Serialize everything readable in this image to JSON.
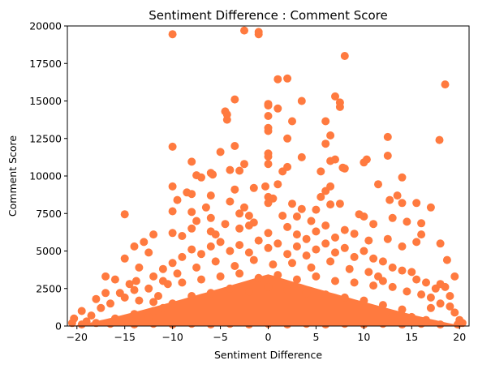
{
  "chart_data": {
    "type": "scatter",
    "title": "Sentiment Difference : Comment Score",
    "xlabel": "Sentiment Difference",
    "ylabel": "Comment Score",
    "xlim": [
      -21,
      21
    ],
    "ylim": [
      0,
      20000
    ],
    "x_ticks": [
      -20,
      -15,
      -10,
      -5,
      0,
      5,
      10,
      15,
      20
    ],
    "x_tick_labels": [
      "−20",
      "−15",
      "−10",
      "−5",
      "0",
      "5",
      "10",
      "15",
      "20"
    ],
    "y_ticks": [
      0,
      2500,
      5000,
      7500,
      10000,
      12500,
      15000,
      17500,
      20000
    ],
    "y_tick_labels": [
      "0",
      "2500",
      "5000",
      "7500",
      "10000",
      "12500",
      "15000",
      "17500",
      "20000"
    ],
    "grid": false,
    "legend": "none",
    "marker_color": "#ff7a3f",
    "series": [
      {
        "points": [
          [
            -10,
            19450
          ],
          [
            -2.5,
            19700
          ],
          [
            -1,
            19600
          ],
          [
            -1,
            19450
          ],
          [
            8,
            18000
          ],
          [
            18.5,
            16100
          ],
          [
            1,
            16450
          ],
          [
            2,
            16500
          ],
          [
            -3.5,
            15100
          ],
          [
            3.5,
            15000
          ],
          [
            7,
            15300
          ],
          [
            7.5,
            14900
          ],
          [
            7.5,
            14600
          ],
          [
            -4.5,
            14300
          ],
          [
            -4.3,
            14100
          ],
          [
            -4.3,
            13750
          ],
          [
            0,
            14800
          ],
          [
            0,
            14700
          ],
          [
            1,
            14500
          ],
          [
            0,
            14000
          ],
          [
            2.5,
            13650
          ],
          [
            0,
            13200
          ],
          [
            0,
            13000
          ],
          [
            6,
            13650
          ],
          [
            6.5,
            12700
          ],
          [
            12.5,
            12600
          ],
          [
            2,
            12500
          ],
          [
            6,
            12150
          ],
          [
            17.9,
            12400
          ],
          [
            -10,
            11950
          ],
          [
            -3.5,
            12000
          ],
          [
            -5,
            11600
          ],
          [
            0,
            11500
          ],
          [
            0,
            11300
          ],
          [
            12.5,
            11350
          ],
          [
            3.5,
            11250
          ],
          [
            -8,
            10950
          ],
          [
            -2.5,
            10800
          ],
          [
            0,
            10800
          ],
          [
            5.5,
            10300
          ],
          [
            6.5,
            11000
          ],
          [
            7,
            11100
          ],
          [
            8,
            10500
          ],
          [
            7.8,
            10550
          ],
          [
            10,
            10900
          ],
          [
            10.3,
            11100
          ],
          [
            -4,
            10400
          ],
          [
            -3,
            10350
          ],
          [
            -6,
            10200
          ],
          [
            -5.8,
            10100
          ],
          [
            -7.5,
            10050
          ],
          [
            -7,
            9900
          ],
          [
            1.5,
            10300
          ],
          [
            2,
            10600
          ],
          [
            14,
            9900
          ],
          [
            -10,
            9300
          ],
          [
            -9.5,
            8400
          ],
          [
            -8.5,
            8900
          ],
          [
            -8,
            8800
          ],
          [
            -3.5,
            9100
          ],
          [
            -1.5,
            9200
          ],
          [
            -0.3,
            9300
          ],
          [
            1,
            9450
          ],
          [
            5.5,
            8600
          ],
          [
            6,
            9000
          ],
          [
            6.5,
            9300
          ],
          [
            11.5,
            9450
          ],
          [
            -6,
            8700
          ],
          [
            -4,
            8300
          ],
          [
            -2.5,
            7900
          ],
          [
            0,
            8600
          ],
          [
            0,
            8200
          ],
          [
            0.5,
            8500
          ],
          [
            2.5,
            8150
          ],
          [
            3.5,
            7800
          ],
          [
            5,
            7750
          ],
          [
            6.5,
            8100
          ],
          [
            7.5,
            8150
          ],
          [
            12.7,
            8400
          ],
          [
            13.5,
            8700
          ],
          [
            14,
            8200
          ],
          [
            15.5,
            8200
          ],
          [
            17,
            7900
          ],
          [
            -15,
            7450
          ],
          [
            -10,
            7650
          ],
          [
            -8,
            7600
          ],
          [
            -7.5,
            7000
          ],
          [
            -6.5,
            7900
          ],
          [
            -6,
            7200
          ],
          [
            -3,
            7500
          ],
          [
            -2,
            7350
          ],
          [
            -1.5,
            6900
          ],
          [
            1.5,
            7350
          ],
          [
            3,
            7300
          ],
          [
            4.5,
            7000
          ],
          [
            9.5,
            7450
          ],
          [
            10,
            7300
          ],
          [
            11,
            6800
          ],
          [
            13,
            7200
          ],
          [
            14.5,
            6950
          ],
          [
            16,
            6850
          ],
          [
            -14,
            5300
          ],
          [
            -13,
            5600
          ],
          [
            -12,
            6100
          ],
          [
            -12.5,
            4900
          ],
          [
            -15,
            4500
          ],
          [
            -10,
            6200
          ],
          [
            -9,
            6000
          ],
          [
            -8,
            6500
          ],
          [
            -6,
            6300
          ],
          [
            -5.5,
            6100
          ],
          [
            -4.5,
            6800
          ],
          [
            -3,
            6500
          ],
          [
            -2,
            6700
          ],
          [
            0,
            6200
          ],
          [
            2,
            6600
          ],
          [
            3,
            6100
          ],
          [
            4,
            5800
          ],
          [
            5,
            6300
          ],
          [
            6,
            6700
          ],
          [
            7,
            5900
          ],
          [
            8,
            6400
          ],
          [
            9,
            6150
          ],
          [
            10.5,
            5700
          ],
          [
            12.5,
            5800
          ],
          [
            14,
            5300
          ],
          [
            15.5,
            5600
          ],
          [
            16,
            6100
          ],
          [
            18,
            5500
          ],
          [
            18.7,
            4400
          ],
          [
            -17,
            3300
          ],
          [
            -16,
            3100
          ],
          [
            -14.5,
            2800
          ],
          [
            -13.5,
            3900
          ],
          [
            -13.8,
            3000
          ],
          [
            -12,
            3300
          ],
          [
            -11,
            3000
          ],
          [
            -18,
            1800
          ],
          [
            -19.5,
            1000
          ],
          [
            -17,
            2200
          ],
          [
            -15.5,
            2200
          ],
          [
            -14,
            2400
          ],
          [
            -12.5,
            2500
          ],
          [
            -11.5,
            2000
          ],
          [
            -20.5,
            200
          ],
          [
            -20.3,
            500
          ],
          [
            -19,
            300
          ],
          [
            -18.5,
            700
          ],
          [
            -17.5,
            1200
          ],
          [
            -16.5,
            1500
          ],
          [
            -15,
            1900
          ],
          [
            -13.5,
            1700
          ],
          [
            -12,
            1600
          ],
          [
            13,
            3900
          ],
          [
            14,
            3700
          ],
          [
            15,
            3600
          ],
          [
            15.5,
            3100
          ],
          [
            16.5,
            2900
          ],
          [
            17.5,
            2500
          ],
          [
            18,
            2800
          ],
          [
            18.5,
            2600
          ],
          [
            19.5,
            3300
          ],
          [
            19,
            2000
          ],
          [
            17,
            1900
          ],
          [
            16,
            2100
          ],
          [
            14.5,
            2300
          ],
          [
            13,
            2600
          ],
          [
            12,
            3000
          ],
          [
            19.5,
            900
          ],
          [
            20,
            400
          ],
          [
            20.3,
            200
          ],
          [
            19,
            1300
          ],
          [
            18,
            1500
          ],
          [
            17,
            1200
          ],
          [
            -10,
            4200
          ],
          [
            -9,
            4600
          ],
          [
            -8,
            5100
          ],
          [
            -7,
            4800
          ],
          [
            -6,
            5300
          ],
          [
            -5,
            5600
          ],
          [
            -4,
            5000
          ],
          [
            -3,
            5400
          ],
          [
            -2,
            4900
          ],
          [
            -1,
            5700
          ],
          [
            0,
            5200
          ],
          [
            1,
            5500
          ],
          [
            2,
            4800
          ],
          [
            3,
            5300
          ],
          [
            4,
            4700
          ],
          [
            5,
            5100
          ],
          [
            6,
            5500
          ],
          [
            7,
            4900
          ],
          [
            8,
            5200
          ],
          [
            9,
            4600
          ],
          [
            10,
            5000
          ],
          [
            11,
            4500
          ],
          [
            12,
            4300
          ],
          [
            -11,
            3800
          ],
          [
            -9.5,
            3500
          ],
          [
            -7.5,
            3900
          ],
          [
            -5.5,
            4300
          ],
          [
            -3.5,
            4000
          ],
          [
            -1.5,
            4400
          ],
          [
            0.5,
            4100
          ],
          [
            2.5,
            4200
          ],
          [
            4.5,
            3900
          ],
          [
            6.5,
            4300
          ],
          [
            8.5,
            3800
          ],
          [
            10.5,
            3600
          ],
          [
            11.5,
            3300
          ],
          [
            -10.5,
            2800
          ],
          [
            -9,
            2900
          ],
          [
            -7,
            3100
          ],
          [
            -5,
            3300
          ],
          [
            -3,
            3500
          ],
          [
            -1,
            3200
          ],
          [
            1,
            3400
          ],
          [
            3,
            3100
          ],
          [
            5,
            3300
          ],
          [
            7,
            3000
          ],
          [
            9,
            2900
          ],
          [
            11,
            2700
          ],
          [
            -12,
            1000
          ],
          [
            -11,
            1200
          ],
          [
            -10,
            1500
          ],
          [
            -8,
            2000
          ],
          [
            -6,
            2200
          ],
          [
            -4,
            2500
          ],
          [
            -2,
            2300
          ],
          [
            0,
            2600
          ],
          [
            2,
            2400
          ],
          [
            4,
            2200
          ],
          [
            6,
            2100
          ],
          [
            8,
            1900
          ],
          [
            10,
            1700
          ],
          [
            12,
            1400
          ],
          [
            14,
            1100
          ],
          [
            -16,
            500
          ],
          [
            -14,
            800
          ],
          [
            -12.5,
            600
          ],
          [
            13,
            700
          ],
          [
            15,
            600
          ],
          [
            16.5,
            400
          ],
          [
            -19.5,
            100
          ],
          [
            -18,
            200
          ],
          [
            -16.5,
            150
          ],
          [
            -14,
            100
          ],
          [
            -12,
            150
          ],
          [
            -10,
            100
          ],
          [
            -8,
            150
          ],
          [
            -6,
            100
          ],
          [
            -4,
            150
          ],
          [
            -2,
            100
          ],
          [
            0,
            150
          ],
          [
            2,
            100
          ],
          [
            4,
            150
          ],
          [
            6,
            100
          ],
          [
            8,
            150
          ],
          [
            10,
            100
          ],
          [
            12,
            150
          ],
          [
            14,
            100
          ],
          [
            16,
            150
          ],
          [
            18,
            100
          ],
          [
            19.8,
            100
          ]
        ]
      }
    ]
  }
}
